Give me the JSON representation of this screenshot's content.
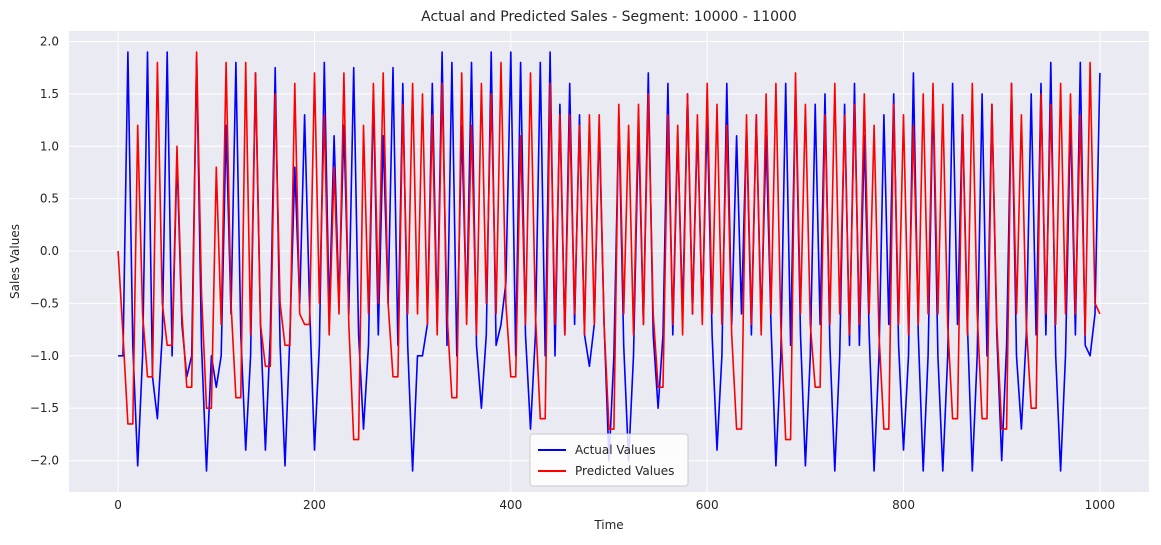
{
  "chart_data": {
    "type": "line",
    "title": "Actual and Predicted Sales - Segment: 10000 - 11000",
    "xlabel": "Time",
    "ylabel": "Sales Values",
    "xlim": [
      -50,
      1050
    ],
    "ylim": [
      -2.3,
      2.1
    ],
    "x_ticks": [
      0,
      200,
      400,
      600,
      800,
      1000
    ],
    "x_tick_labels": [
      "0",
      "200",
      "400",
      "600",
      "800",
      "1000"
    ],
    "y_ticks": [
      -2.0,
      -1.5,
      -1.0,
      -0.5,
      0.0,
      0.5,
      1.0,
      1.5,
      2.0
    ],
    "y_tick_labels": [
      "−2.0",
      "−1.5",
      "−1.0",
      "−0.5",
      "0.0",
      "0.5",
      "1.0",
      "1.5",
      "2.0"
    ],
    "grid": true,
    "legend_position": "lower-center",
    "background": "#eaeaf2",
    "series": [
      {
        "name": "Actual Values",
        "color": "#0000ff",
        "x_start": 0,
        "x_step": 10,
        "values": [
          -1.0,
          1.9,
          -2.05,
          1.9,
          -1.6,
          1.9,
          0.9,
          -1.2,
          1.85,
          -2.1,
          -1.3,
          1.2,
          1.8,
          -1.9,
          1.7,
          -1.9,
          1.75,
          -2.05,
          0.8,
          1.3,
          -1.9,
          1.8,
          1.1,
          1.2,
          1.75,
          -1.7,
          1.5,
          1.1,
          1.75,
          1.6,
          -2.1,
          -1.0,
          1.6,
          1.9,
          1.8,
          1.2,
          1.8,
          -1.5,
          1.9,
          -0.7,
          1.9,
          1.8,
          -1.7,
          1.8,
          1.9,
          1.4,
          1.6,
          1.3,
          -1.1,
          1.2,
          -2.0,
          1.3,
          -2.0,
          1.2,
          1.7,
          -1.5,
          1.6,
          1.1,
          1.5,
          1.2,
          1.3,
          -1.9,
          1.6,
          1.1,
          1.2,
          1.3,
          1.1,
          -2.05,
          1.6,
          1.6,
          -2.05,
          1.4,
          1.5,
          -2.1,
          1.4,
          1.6,
          1.1,
          -2.1,
          1.3,
          1.5,
          -1.9,
          1.7,
          -2.1,
          1.5,
          -2.1,
          1.6,
          1.3,
          -2.1,
          1.5,
          1.4,
          -2.0,
          1.6,
          -1.7,
          1.5,
          1.6,
          1.8,
          -2.1,
          1.3,
          1.8,
          -1.0,
          1.7
        ],
        "lows": [
          -1.0,
          -0.9,
          -1.0,
          -1.2,
          -0.8,
          -1.0,
          -0.7,
          -1.0,
          -0.9,
          -1.0,
          -1.0,
          -0.6,
          -0.8,
          -1.0,
          -0.7,
          -0.8,
          -0.9,
          -0.8,
          -0.5,
          -0.5,
          -0.9,
          -0.6,
          -0.5,
          -0.6,
          -0.8,
          -0.9,
          -0.8,
          -0.5,
          -0.9,
          -0.9,
          -1.0,
          -0.7,
          -0.7,
          -0.9,
          -1.0,
          -0.6,
          -0.9,
          -0.8,
          -0.9,
          -0.3,
          -1.0,
          -0.8,
          -0.8,
          -1.0,
          -1.0,
          -0.8,
          -0.7,
          -0.8,
          -0.7,
          -0.7,
          -1.0,
          -0.9,
          -1.0,
          -0.7,
          -0.8,
          -0.8,
          -0.8,
          -0.6,
          -0.6,
          -0.6,
          -0.8,
          -1.0,
          -0.7,
          -0.6,
          -0.8,
          -0.7,
          -0.7,
          -1.0,
          -0.9,
          -0.8,
          -1.0,
          -0.7,
          -0.9,
          -1.0,
          -0.9,
          -0.9,
          -0.8,
          -1.0,
          -0.7,
          -0.9,
          -1.0,
          -0.8,
          -1.0,
          -1.0,
          -1.0,
          -0.7,
          -0.7,
          -1.0,
          -1.0,
          -0.8,
          -0.9,
          -1.0,
          -0.8,
          -0.8,
          -0.8,
          -1.0,
          -1.0,
          -0.8,
          -0.9,
          -0.6,
          -0.4
        ]
      },
      {
        "name": "Predicted Values",
        "color": "#ff0000",
        "x_start": 0,
        "x_step": 10,
        "values": [
          0.0,
          -1.65,
          1.2,
          -1.2,
          1.8,
          -0.9,
          1.0,
          -1.3,
          1.9,
          -1.5,
          0.8,
          1.8,
          -1.4,
          1.8,
          1.7,
          -1.1,
          1.5,
          -0.9,
          1.6,
          -0.7,
          1.7,
          1.3,
          0.8,
          1.7,
          -1.8,
          1.2,
          1.6,
          1.7,
          -1.2,
          1.4,
          1.6,
          1.5,
          1.3,
          1.6,
          -1.4,
          1.7,
          1.2,
          1.6,
          1.5,
          1.8,
          -1.2,
          1.1,
          1.7,
          -1.6,
          1.6,
          1.3,
          1.3,
          1.2,
          1.3,
          1.3,
          -1.7,
          1.4,
          1.2,
          1.4,
          1.5,
          -1.3,
          1.3,
          1.2,
          1.5,
          1.3,
          1.6,
          1.4,
          1.2,
          -1.7,
          1.3,
          1.3,
          1.5,
          1.6,
          -1.8,
          1.7,
          1.4,
          -1.3,
          1.3,
          1.6,
          1.3,
          1.4,
          1.5,
          1.2,
          -1.7,
          1.4,
          1.3,
          1.2,
          1.5,
          1.6,
          1.4,
          -1.6,
          1.3,
          1.6,
          -1.6,
          1.4,
          -1.7,
          1.6,
          1.3,
          -1.5,
          1.5,
          1.4,
          1.6,
          1.5,
          1.3,
          1.8,
          -0.6
        ],
        "lows": [
          -0.8,
          -1.65,
          -0.6,
          -1.2,
          -0.5,
          -0.9,
          -0.6,
          -1.3,
          -0.4,
          -1.5,
          -0.7,
          -0.5,
          -1.4,
          -0.8,
          -0.7,
          -1.1,
          -0.5,
          -0.9,
          -0.6,
          -0.7,
          -0.5,
          -0.8,
          -0.6,
          -0.7,
          -1.8,
          -0.6,
          -0.5,
          -0.5,
          -1.2,
          -0.6,
          -0.6,
          -0.7,
          -0.8,
          -0.6,
          -1.4,
          -0.7,
          -0.8,
          -0.5,
          -0.6,
          -0.5,
          -1.2,
          -0.7,
          -0.6,
          -1.6,
          -0.7,
          -0.8,
          -0.6,
          -0.8,
          -0.7,
          -0.7,
          -1.7,
          -0.6,
          -0.8,
          -0.7,
          -0.6,
          -1.3,
          -0.7,
          -0.8,
          -0.6,
          -0.7,
          -0.6,
          -0.7,
          -0.8,
          -1.7,
          -0.7,
          -0.8,
          -0.6,
          -0.7,
          -1.8,
          -0.6,
          -0.7,
          -1.3,
          -0.7,
          -0.6,
          -0.8,
          -0.7,
          -0.6,
          -0.8,
          -1.7,
          -0.7,
          -0.8,
          -0.7,
          -0.6,
          -0.6,
          -0.7,
          -1.6,
          -0.8,
          -0.6,
          -1.6,
          -0.7,
          -1.7,
          -0.6,
          -0.7,
          -1.5,
          -0.6,
          -0.7,
          -0.6,
          -0.6,
          -0.8,
          -0.5,
          -0.6
        ]
      }
    ]
  }
}
